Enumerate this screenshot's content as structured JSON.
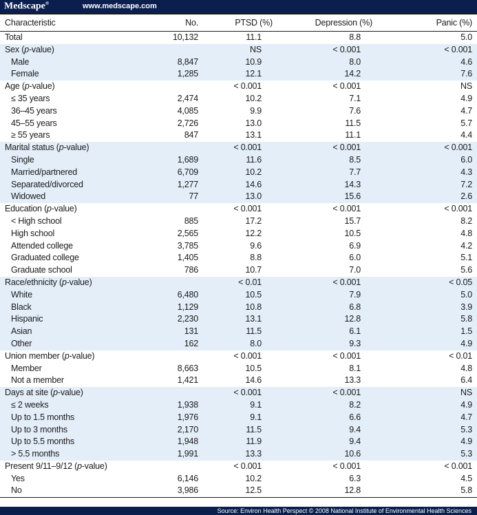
{
  "brand": {
    "logo": "Medscape",
    "reg": "®",
    "url": "www.medscape.com"
  },
  "headers": [
    "Characteristic",
    "No.",
    "PTSD (%)",
    "Depression (%)",
    "Panic (%)"
  ],
  "rows": [
    {
      "label": "Total",
      "no": "10,132",
      "ptsd": "11.1",
      "dep": "8.8",
      "panic": "5.0",
      "sub": false,
      "shade": false
    },
    {
      "label": "Sex (p-value)",
      "no": "",
      "ptsd": "NS",
      "dep": "< 0.001",
      "panic": "< 0.001",
      "sub": false,
      "shade": true,
      "pv": true
    },
    {
      "label": "Male",
      "no": "8,847",
      "ptsd": "10.9",
      "dep": "8.0",
      "panic": "4.6",
      "sub": true,
      "shade": true
    },
    {
      "label": "Female",
      "no": "1,285",
      "ptsd": "12.1",
      "dep": "14.2",
      "panic": "7.6",
      "sub": true,
      "shade": true
    },
    {
      "label": "Age (p-value)",
      "no": "",
      "ptsd": "< 0.001",
      "dep": "< 0.001",
      "panic": "NS",
      "sub": false,
      "shade": false,
      "pv": true
    },
    {
      "label": "≤ 35 years",
      "no": "2,474",
      "ptsd": "10.2",
      "dep": "7.1",
      "panic": "4.9",
      "sub": true,
      "shade": false
    },
    {
      "label": "36–45 years",
      "no": "4,085",
      "ptsd": "9.9",
      "dep": "7.6",
      "panic": "4.7",
      "sub": true,
      "shade": false
    },
    {
      "label": "45–55 years",
      "no": "2,726",
      "ptsd": "13.0",
      "dep": "11.5",
      "panic": "5.7",
      "sub": true,
      "shade": false
    },
    {
      "label": "≥ 55 years",
      "no": "847",
      "ptsd": "13.1",
      "dep": "11.1",
      "panic": "4.4",
      "sub": true,
      "shade": false
    },
    {
      "label": "Marital status (p-value)",
      "no": "",
      "ptsd": "< 0.001",
      "dep": "< 0.001",
      "panic": "< 0.001",
      "sub": false,
      "shade": true,
      "pv": true
    },
    {
      "label": "Single",
      "no": "1,689",
      "ptsd": "11.6",
      "dep": "8.5",
      "panic": "6.0",
      "sub": true,
      "shade": true
    },
    {
      "label": "Married/partnered",
      "no": "6,709",
      "ptsd": "10.2",
      "dep": "7.7",
      "panic": "4.3",
      "sub": true,
      "shade": true
    },
    {
      "label": "Separated/divorced",
      "no": "1,277",
      "ptsd": "14.6",
      "dep": "14.3",
      "panic": "7.2",
      "sub": true,
      "shade": true
    },
    {
      "label": "Widowed",
      "no": "77",
      "ptsd": "13.0",
      "dep": "15.6",
      "panic": "2.6",
      "sub": true,
      "shade": true
    },
    {
      "label": "Education (p-value)",
      "no": "",
      "ptsd": "< 0.001",
      "dep": "< 0.001",
      "panic": "< 0.001",
      "sub": false,
      "shade": false,
      "pv": true
    },
    {
      "label": "< High school",
      "no": "885",
      "ptsd": "17.2",
      "dep": "15.7",
      "panic": "8.2",
      "sub": true,
      "shade": false
    },
    {
      "label": "High school",
      "no": "2,565",
      "ptsd": "12.2",
      "dep": "10.5",
      "panic": "4.8",
      "sub": true,
      "shade": false
    },
    {
      "label": "Attended college",
      "no": "3,785",
      "ptsd": "9.6",
      "dep": "6.9",
      "panic": "4.2",
      "sub": true,
      "shade": false
    },
    {
      "label": "Graduated college",
      "no": "1,405",
      "ptsd": "8.8",
      "dep": "6.0",
      "panic": "5.1",
      "sub": true,
      "shade": false
    },
    {
      "label": "Graduate school",
      "no": "786",
      "ptsd": "10.7",
      "dep": "7.0",
      "panic": "5.6",
      "sub": true,
      "shade": false
    },
    {
      "label": "Race/ethnicity (p-value)",
      "no": "",
      "ptsd": "< 0.01",
      "dep": "< 0.001",
      "panic": "< 0.05",
      "sub": false,
      "shade": true,
      "pv": true
    },
    {
      "label": "White",
      "no": "6,480",
      "ptsd": "10.5",
      "dep": "7.9",
      "panic": "5.0",
      "sub": true,
      "shade": true
    },
    {
      "label": "Black",
      "no": "1,129",
      "ptsd": "10.8",
      "dep": "6.8",
      "panic": "3.9",
      "sub": true,
      "shade": true
    },
    {
      "label": "Hispanic",
      "no": "2,230",
      "ptsd": "13.1",
      "dep": "12.8",
      "panic": "5.8",
      "sub": true,
      "shade": true
    },
    {
      "label": "Asian",
      "no": "131",
      "ptsd": "11.5",
      "dep": "6.1",
      "panic": "1.5",
      "sub": true,
      "shade": true
    },
    {
      "label": "Other",
      "no": "162",
      "ptsd": "8.0",
      "dep": "9.3",
      "panic": "4.9",
      "sub": true,
      "shade": true
    },
    {
      "label": "Union member (p-value)",
      "no": "",
      "ptsd": "< 0.001",
      "dep": "< 0.001",
      "panic": "< 0.01",
      "sub": false,
      "shade": false,
      "pv": true
    },
    {
      "label": "Member",
      "no": "8,663",
      "ptsd": "10.5",
      "dep": "8.1",
      "panic": "4.8",
      "sub": true,
      "shade": false
    },
    {
      "label": "Not a member",
      "no": "1,421",
      "ptsd": "14.6",
      "dep": "13.3",
      "panic": "6.4",
      "sub": true,
      "shade": false
    },
    {
      "label": "Days at site (p-value)",
      "no": "",
      "ptsd": "< 0.001",
      "dep": "< 0.001",
      "panic": "NS",
      "sub": false,
      "shade": true,
      "pv": true
    },
    {
      "label": "≤ 2 weeks",
      "no": "1,938",
      "ptsd": "9.1",
      "dep": "8.2",
      "panic": "4.9",
      "sub": true,
      "shade": true
    },
    {
      "label": "Up to 1.5 months",
      "no": "1,976",
      "ptsd": "9.1",
      "dep": "6.6",
      "panic": "4.7",
      "sub": true,
      "shade": true
    },
    {
      "label": "Up to 3 months",
      "no": "2,170",
      "ptsd": "11.5",
      "dep": "9.4",
      "panic": "5.3",
      "sub": true,
      "shade": true
    },
    {
      "label": "Up to 5.5 months",
      "no": "1,948",
      "ptsd": "11.9",
      "dep": "9.4",
      "panic": "4.9",
      "sub": true,
      "shade": true
    },
    {
      "label": "> 5.5 months",
      "no": "1,991",
      "ptsd": "13.3",
      "dep": "10.6",
      "panic": "5.3",
      "sub": true,
      "shade": true
    },
    {
      "label": "Present 9/11–9/12 (p-value)",
      "no": "",
      "ptsd": "< 0.001",
      "dep": "< 0.001",
      "panic": "< 0.001",
      "sub": false,
      "shade": false,
      "pv": true
    },
    {
      "label": "Yes",
      "no": "6,146",
      "ptsd": "10.2",
      "dep": "6.3",
      "panic": "4.5",
      "sub": true,
      "shade": false
    },
    {
      "label": "No",
      "no": "3,986",
      "ptsd": "12.5",
      "dep": "12.8",
      "panic": "5.8",
      "sub": true,
      "shade": false
    }
  ],
  "footer": "Source: Environ Health Perspect © 2008 National Institute of Environmental Health Sciences"
}
